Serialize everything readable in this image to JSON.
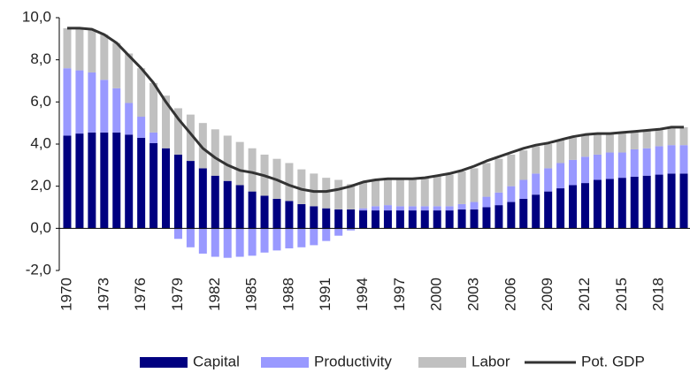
{
  "chart_data": {
    "type": "bar",
    "categories": [
      "1970",
      null,
      null,
      "1973",
      null,
      null,
      "1976",
      null,
      null,
      "1979",
      null,
      null,
      "1982",
      null,
      null,
      "1985",
      null,
      null,
      "1988",
      null,
      null,
      "1991",
      null,
      null,
      "1994",
      null,
      null,
      "1997",
      null,
      null,
      "2000",
      null,
      null,
      "2003",
      null,
      null,
      "2006",
      null,
      null,
      "2009",
      null,
      null,
      "2012",
      null,
      null,
      "2015",
      null,
      null,
      "2018",
      null,
      null
    ],
    "series": [
      {
        "name": "Capital",
        "color": "#000080",
        "values": [
          4.4,
          4.5,
          4.55,
          4.55,
          4.55,
          4.45,
          4.3,
          4.05,
          3.8,
          3.5,
          3.2,
          2.85,
          2.5,
          2.25,
          2.05,
          1.75,
          1.55,
          1.4,
          1.3,
          1.15,
          1.05,
          0.95,
          0.9,
          0.9,
          0.85,
          0.85,
          0.85,
          0.85,
          0.85,
          0.85,
          0.85,
          0.85,
          0.9,
          0.9,
          1.0,
          1.1,
          1.25,
          1.4,
          1.6,
          1.75,
          1.9,
          2.05,
          2.15,
          2.3,
          2.35,
          2.4,
          2.45,
          2.5,
          2.55,
          2.6,
          2.6
        ]
      },
      {
        "name": "Productivity",
        "color": "#9999ff",
        "values": [
          3.2,
          3.0,
          2.85,
          2.5,
          2.1,
          1.5,
          1.0,
          0.5,
          0.0,
          -0.5,
          -0.9,
          -1.2,
          -1.35,
          -1.4,
          -1.35,
          -1.3,
          -1.15,
          -1.05,
          -0.95,
          -0.9,
          -0.8,
          -0.6,
          -0.35,
          -0.1,
          0.1,
          0.2,
          0.25,
          0.2,
          0.2,
          0.2,
          0.2,
          0.2,
          0.25,
          0.35,
          0.5,
          0.6,
          0.75,
          0.9,
          1.0,
          1.1,
          1.2,
          1.2,
          1.25,
          1.2,
          1.25,
          1.2,
          1.3,
          1.3,
          1.35,
          1.35,
          1.35
        ]
      },
      {
        "name": "Labor",
        "color": "#c0c0c0",
        "values": [
          1.9,
          2.0,
          2.0,
          2.15,
          2.15,
          2.35,
          2.3,
          2.35,
          2.5,
          2.2,
          2.2,
          2.15,
          2.2,
          2.15,
          2.05,
          2.05,
          1.95,
          1.9,
          1.8,
          1.65,
          1.55,
          1.45,
          1.4,
          1.2,
          1.25,
          1.25,
          1.2,
          1.3,
          1.3,
          1.35,
          1.45,
          1.5,
          1.55,
          1.6,
          1.6,
          1.6,
          1.5,
          1.4,
          1.3,
          1.15,
          1.1,
          1.05,
          1.05,
          1.0,
          0.9,
          0.9,
          0.85,
          0.85,
          0.8,
          0.85,
          0.85
        ]
      },
      {
        "name": "Pot. GDP",
        "color": "#333333",
        "type": "line",
        "values": [
          9.5,
          9.5,
          9.45,
          9.2,
          8.8,
          8.2,
          7.6,
          6.9,
          6.0,
          5.2,
          4.5,
          3.8,
          3.35,
          3.0,
          2.75,
          2.65,
          2.5,
          2.3,
          2.05,
          1.85,
          1.75,
          1.75,
          1.85,
          2.0,
          2.2,
          2.3,
          2.35,
          2.35,
          2.35,
          2.4,
          2.5,
          2.6,
          2.75,
          2.95,
          3.2,
          3.4,
          3.6,
          3.8,
          3.95,
          4.05,
          4.2,
          4.35,
          4.45,
          4.5,
          4.5,
          4.55,
          4.6,
          4.65,
          4.7,
          4.8,
          4.8
        ]
      }
    ],
    "ylim": [
      -2,
      10
    ],
    "yticks": [
      {
        "value": -2,
        "label": "-2,0"
      },
      {
        "value": 0,
        "label": "0,0"
      },
      {
        "value": 2,
        "label": "2,0"
      },
      {
        "value": 4,
        "label": "4,0"
      },
      {
        "value": 6,
        "label": "6,0"
      },
      {
        "value": 8,
        "label": "8,0"
      },
      {
        "value": 10,
        "label": "10,0"
      }
    ],
    "grid": false,
    "legend": "bottom"
  }
}
